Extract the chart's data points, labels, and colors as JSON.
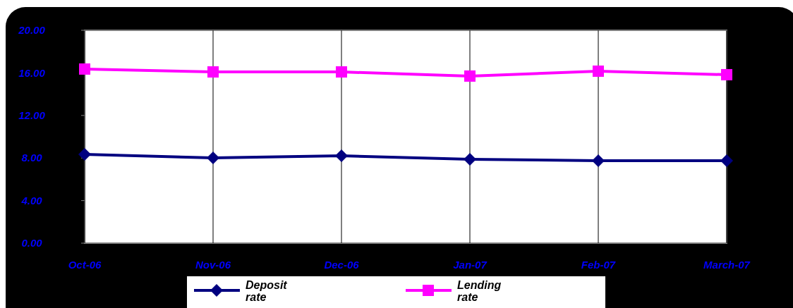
{
  "chart_data": {
    "type": "line",
    "categories": [
      "Oct-06",
      "Nov-06",
      "Dec-06",
      "Jan-07",
      "Feb-07",
      "March-07"
    ],
    "series": [
      {
        "name": "Deposit rate",
        "color": "#000080",
        "marker": "diamond",
        "values": [
          8.34,
          8.01,
          8.21,
          7.88,
          7.75,
          7.75
        ]
      },
      {
        "name": "Lending rate",
        "color": "#ff00ff",
        "marker": "square",
        "values": [
          16.36,
          16.09,
          16.09,
          15.7,
          16.16,
          15.83
        ]
      }
    ],
    "ylim": [
      0,
      20
    ],
    "yticks": [
      {
        "value": 0,
        "label": "0.00"
      },
      {
        "value": 4,
        "label": "4.00"
      },
      {
        "value": 8,
        "label": "8.00"
      },
      {
        "value": 12,
        "label": "12.00"
      },
      {
        "value": 16,
        "label": "16.00"
      },
      {
        "value": 20,
        "label": "20.00"
      }
    ],
    "grid": "x",
    "legend": "bottom",
    "line_style": "solid"
  }
}
